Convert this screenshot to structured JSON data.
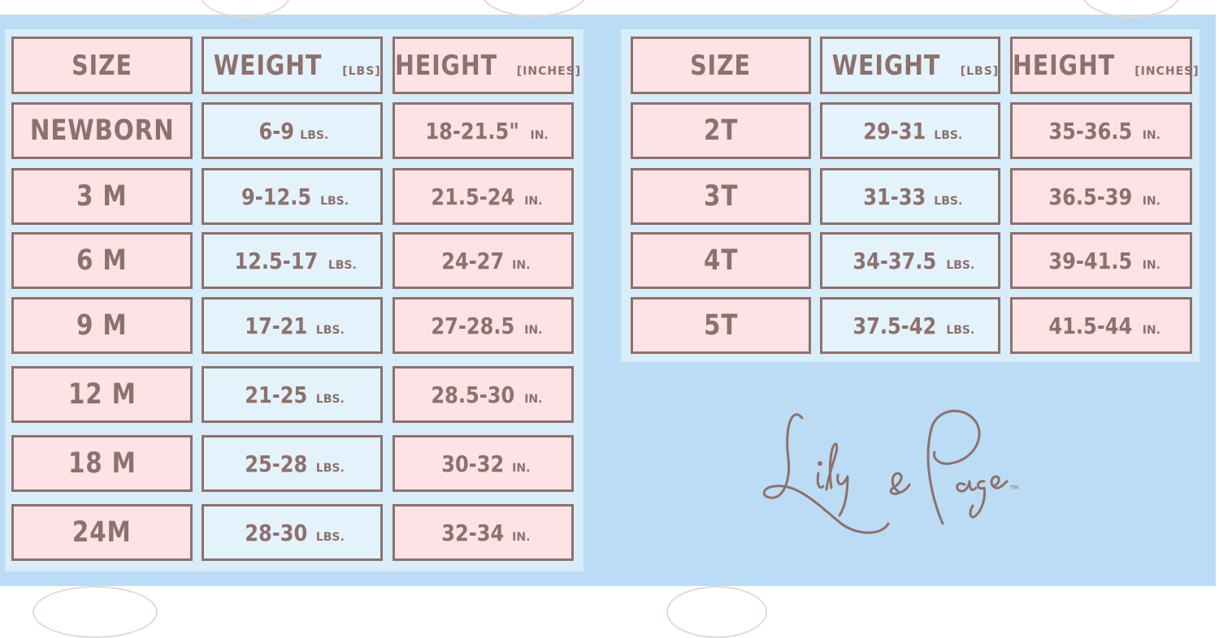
{
  "colors": {
    "border": "#8c716d",
    "pink_cell": "#fde3e5",
    "blue_cell": "#e4f2fc",
    "panel": "#bcdcf5",
    "table_bg": "#d8ecf9"
  },
  "left_table": {
    "headers": {
      "size": "SIZE",
      "weight": "WEIGHT",
      "weight_unit": "[LBS]",
      "height": "HEIGHT",
      "height_unit": "[INCHES]"
    },
    "rows": [
      {
        "size": "NEWBORN",
        "weight": "6-9",
        "weight_unit": "LBS.",
        "height": "18-21.5\"",
        "height_unit": "IN."
      },
      {
        "size": "3 M",
        "weight": "9-12.5",
        "weight_unit": "LBS.",
        "height": "21.5-24",
        "height_unit": "IN."
      },
      {
        "size": "6 M",
        "weight": "12.5-17",
        "weight_unit": "LBS.",
        "height": "24-27",
        "height_unit": "IN."
      },
      {
        "size": "9 M",
        "weight": "17-21",
        "weight_unit": "LBS.",
        "height": "27-28.5",
        "height_unit": "IN."
      },
      {
        "size": "12 M",
        "weight": "21-25",
        "weight_unit": "LBS.",
        "height": "28.5-30",
        "height_unit": "IN."
      },
      {
        "size": "18 M",
        "weight": "25-28",
        "weight_unit": "LBS.",
        "height": "30-32",
        "height_unit": "IN."
      },
      {
        "size": "24M",
        "weight": "28-30",
        "weight_unit": "LBS.",
        "height": "32-34",
        "height_unit": "IN."
      }
    ]
  },
  "right_table": {
    "headers": {
      "size": "SIZE",
      "weight": "WEIGHT",
      "weight_unit": "[LBS]",
      "height": "HEIGHT",
      "height_unit": "[INCHES]"
    },
    "rows": [
      {
        "size": "2T",
        "weight": "29-31",
        "weight_unit": "LBS.",
        "height": "35-36.5",
        "height_unit": "IN."
      },
      {
        "size": "3T",
        "weight": "31-33",
        "weight_unit": "LBS.",
        "height": "36.5-39",
        "height_unit": "IN."
      },
      {
        "size": "4T",
        "weight": "34-37.5",
        "weight_unit": "LBS.",
        "height": "39-41.5",
        "height_unit": "IN."
      },
      {
        "size": "5T",
        "weight": "37.5-42",
        "weight_unit": "LBS.",
        "height": "41.5-44",
        "height_unit": "IN."
      }
    ]
  },
  "logo": {
    "brand": "Lily & Page",
    "trademark": "TM"
  }
}
